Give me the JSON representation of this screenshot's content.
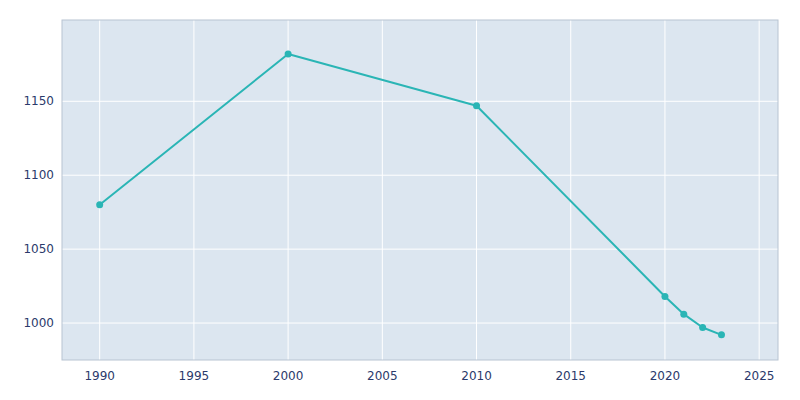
{
  "chart_data": {
    "type": "line",
    "x": [
      1990,
      2000,
      2010,
      2020,
      2021,
      2022,
      2023
    ],
    "values": [
      1080,
      1182,
      1147,
      1018,
      1006,
      997,
      992
    ],
    "color": "#2ab5b5",
    "marker": "circle",
    "xlim": [
      1988,
      2026
    ],
    "ylim": [
      975,
      1205
    ],
    "xticks": [
      1990,
      1995,
      2000,
      2005,
      2010,
      2015,
      2020,
      2025
    ],
    "yticks": [
      1000,
      1050,
      1100,
      1150
    ],
    "grid": true
  }
}
